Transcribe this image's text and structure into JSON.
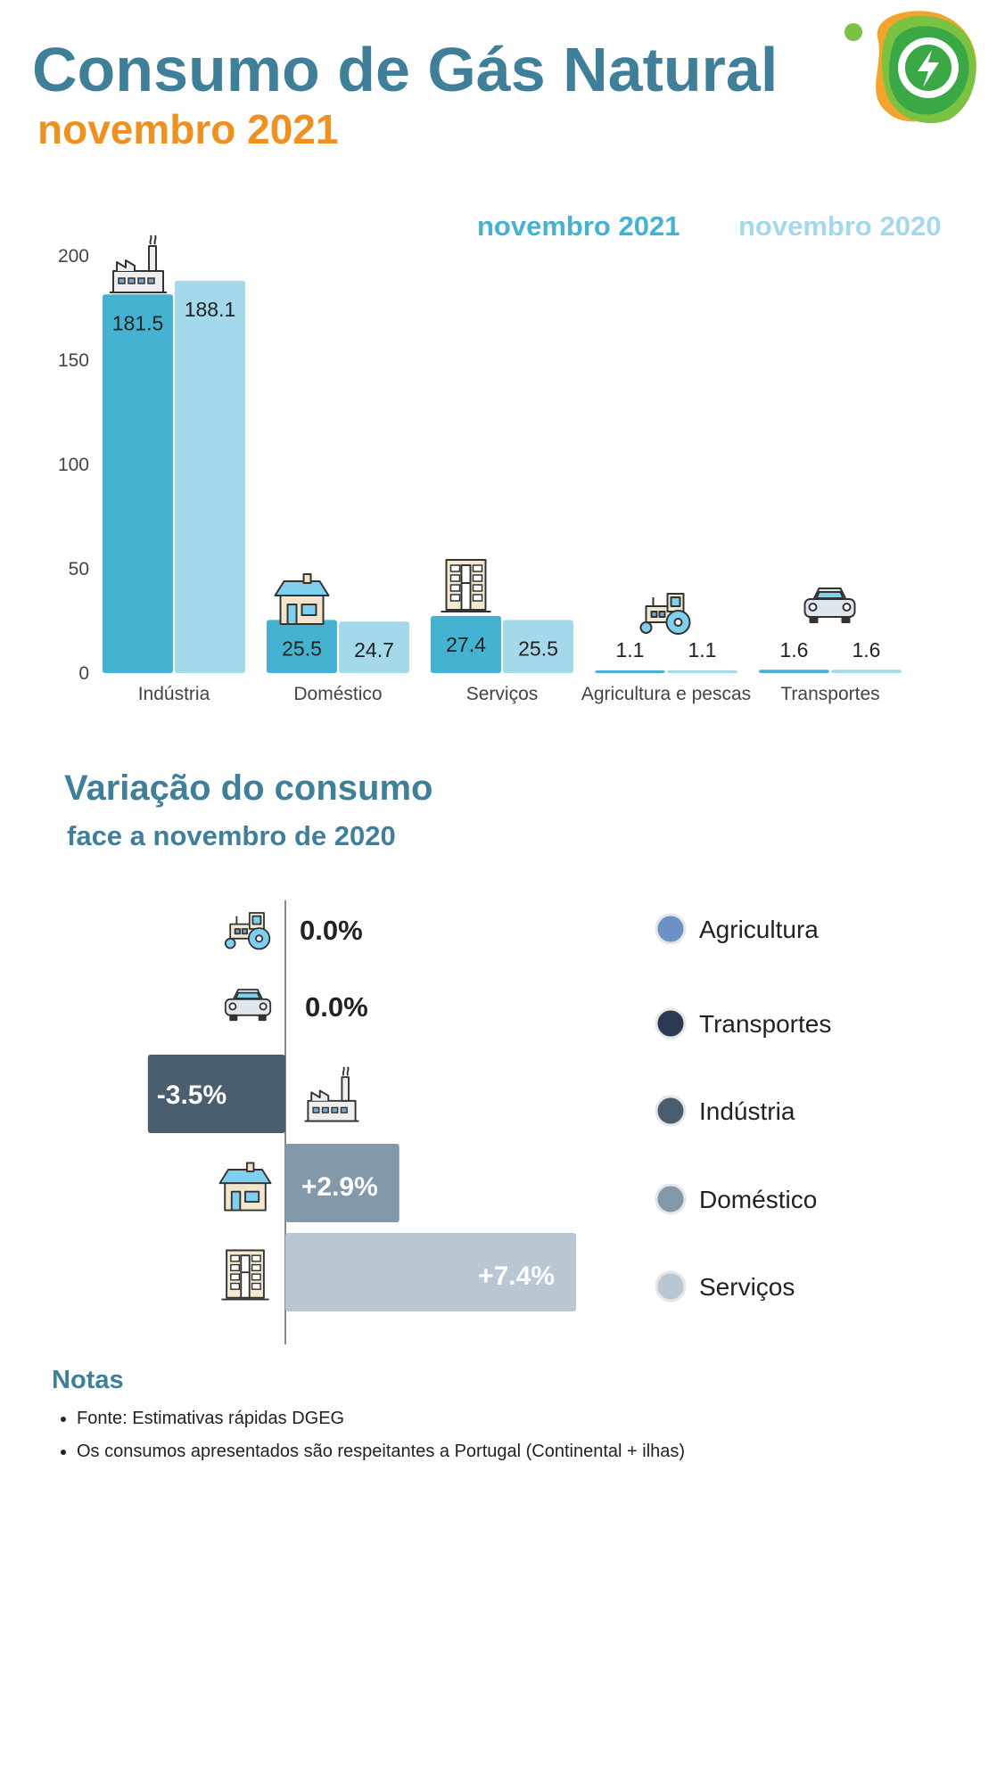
{
  "title": "Consumo de Gás Natural",
  "subtitle": "novembro 2021",
  "colors": {
    "title": "#3f7f9a",
    "subtitle": "#f0911f",
    "series_2021": "#44b2d0",
    "series_2020": "#a3d9ea"
  },
  "chart_data": [
    {
      "type": "bar",
      "categories": [
        "Indústria",
        "Doméstico",
        "Serviços",
        "Agricultura e pescas",
        "Transportes"
      ],
      "category_icons": [
        "factory-icon",
        "house-icon",
        "office-building-icon",
        "tractor-icon",
        "car-icon"
      ],
      "series": [
        {
          "name": "novembro 2021",
          "values": [
            181.5,
            25.5,
            27.4,
            1.1,
            1.6
          ],
          "labels": [
            "181.5",
            "25.5",
            "27.4",
            "1.1",
            "1.6"
          ],
          "color": "#44b2d0"
        },
        {
          "name": "novembro 2020",
          "values": [
            188.1,
            24.7,
            25.5,
            1.1,
            1.6
          ],
          "labels": [
            "188.1",
            "24.7",
            "25.5",
            "1.1",
            "1.6"
          ],
          "color": "#a3d9ea"
        }
      ],
      "yticks": [
        "0",
        "50",
        "100",
        "150",
        "200"
      ],
      "ylim": [
        0,
        200
      ],
      "grid": false,
      "legend": "top-right"
    },
    {
      "type": "bar",
      "orientation": "horizontal",
      "title": "Variação do consumo",
      "subtitle": "face a novembro de 2020",
      "categories": [
        "Agricultura",
        "Transportes",
        "Indústria",
        "Doméstico",
        "Serviços"
      ],
      "category_icons": [
        "tractor-icon",
        "car-icon",
        "factory-icon",
        "house-icon",
        "office-building-icon"
      ],
      "values": [
        0.0,
        0.0,
        -3.5,
        2.9,
        7.4
      ],
      "labels": [
        "0.0%",
        "0.0%",
        "-3.5%",
        "+2.9%",
        "+7.4%"
      ],
      "colors": [
        "#6a92c4",
        "#2a3a52",
        "#4a5e70",
        "#8299aa",
        "#b8c7d2"
      ],
      "legend": "right"
    }
  ],
  "notes": {
    "title": "Notas",
    "items": [
      "Fonte: Estimativas rápidas DGEG",
      "Os consumos apresentados são respeitantes a Portugal (Continental + ilhas)"
    ]
  }
}
